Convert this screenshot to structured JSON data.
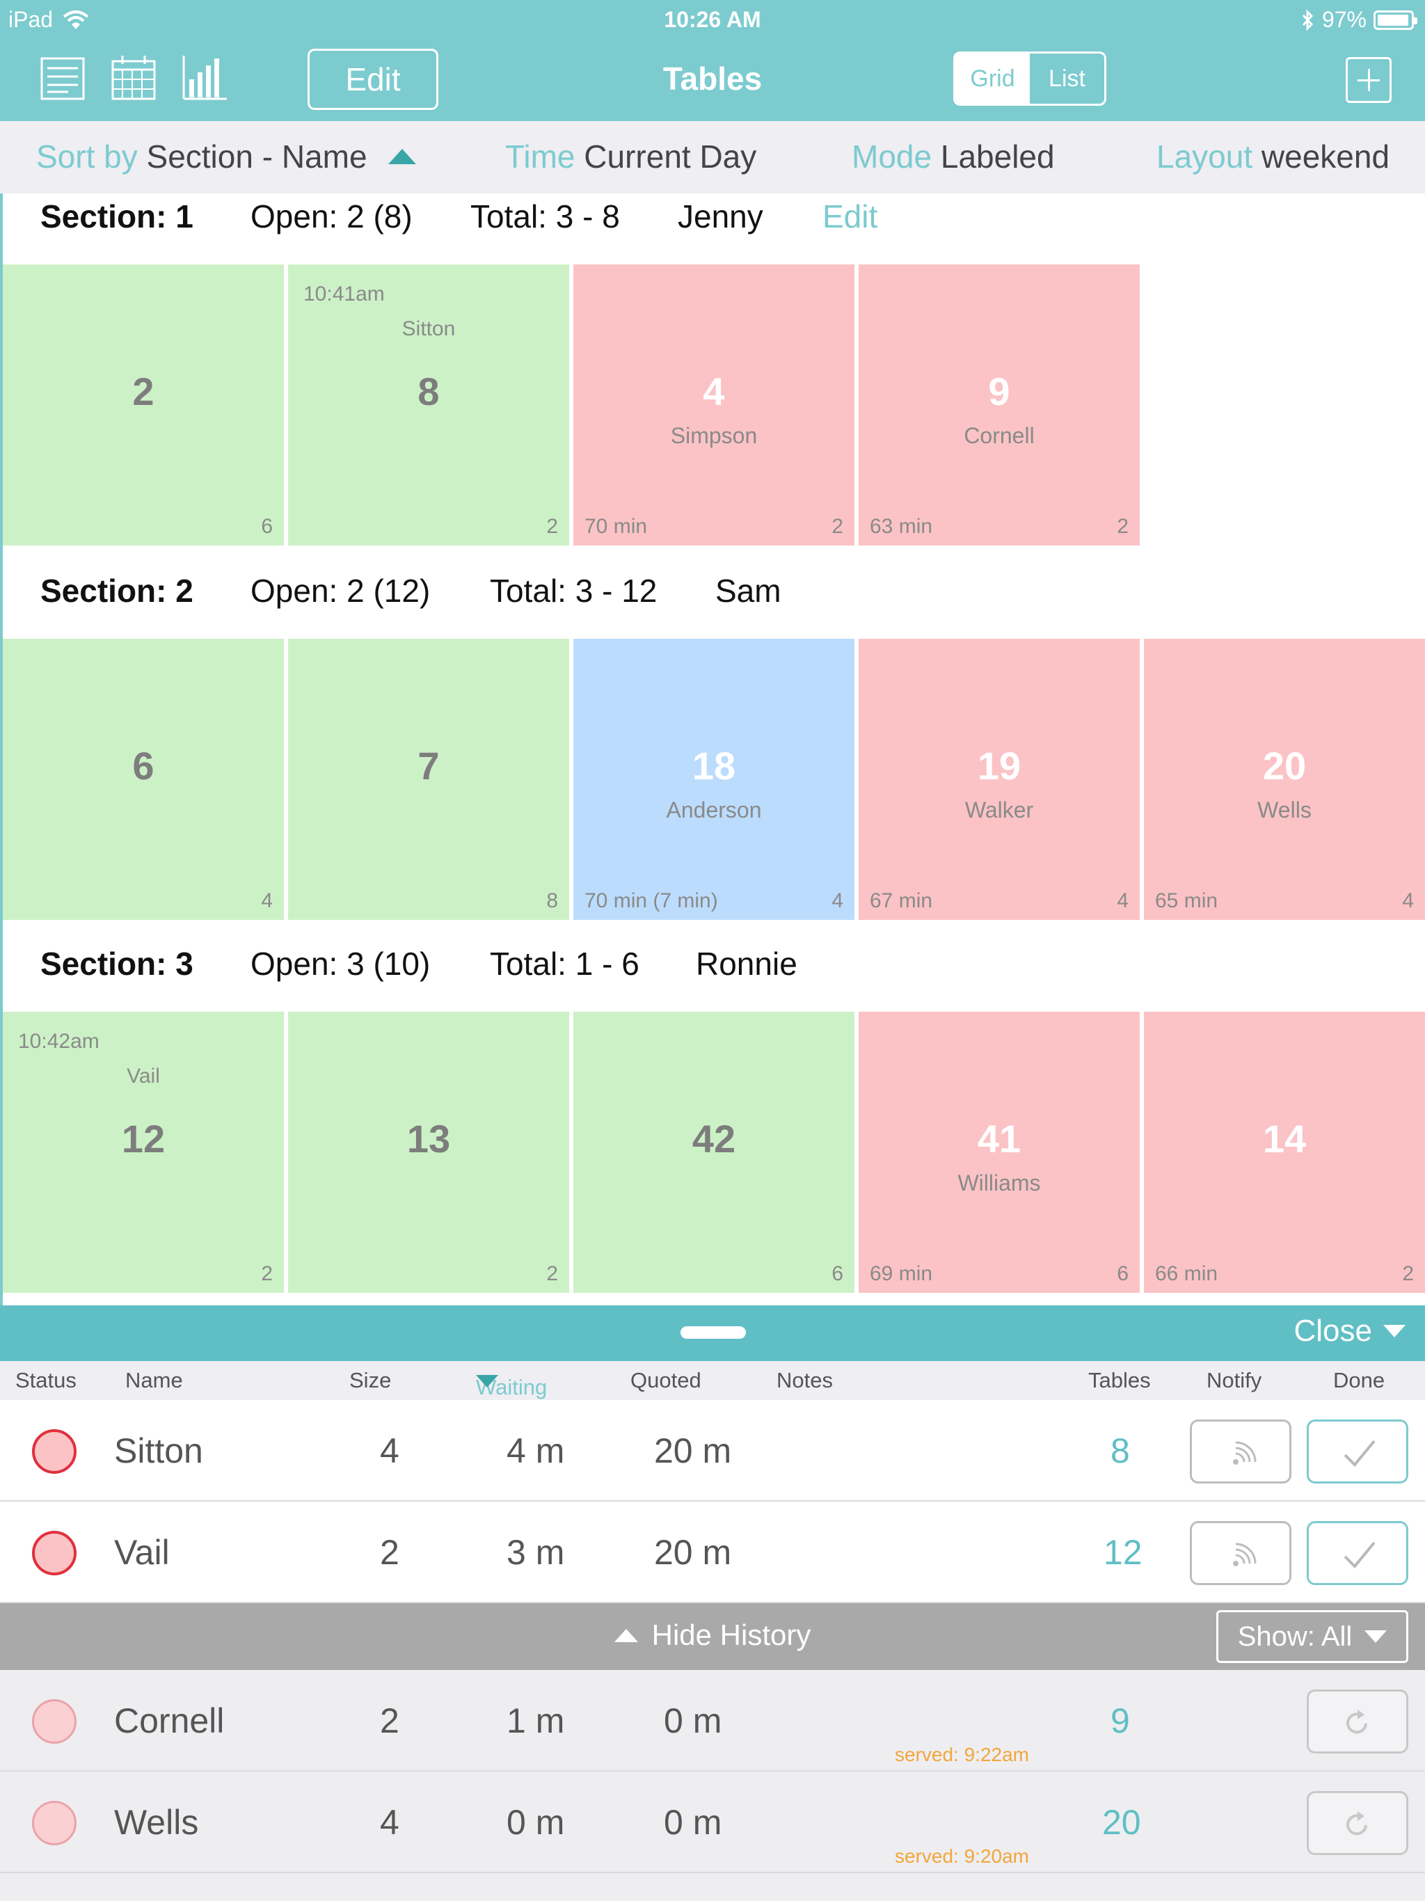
{
  "status_bar": {
    "carrier": "iPad",
    "time": "10:26 AM",
    "battery": "97%"
  },
  "nav": {
    "edit_label": "Edit",
    "title": "Tables",
    "segment": {
      "grid": "Grid",
      "list": "List",
      "selected": "grid"
    }
  },
  "filters": {
    "sort": {
      "key": "Sort by",
      "value": "Section - Name"
    },
    "time": {
      "key": "Time",
      "value": "Current Day"
    },
    "mode": {
      "key": "Mode",
      "value": "Labeled"
    },
    "layout": {
      "key": "Layout",
      "value": "weekend"
    }
  },
  "sections": [
    {
      "title": "Section: 1",
      "open": "Open: 2 (8)",
      "total": "Total: 3 - 8",
      "server": "Jenny",
      "edit": "Edit",
      "tables": [
        {
          "number": "2",
          "status": "green",
          "capacity": "6"
        },
        {
          "number": "8",
          "status": "green",
          "capacity": "2",
          "time": "10:41am",
          "reserved": "Sitton"
        },
        {
          "number": "4",
          "status": "red",
          "capacity": "2",
          "name": "Simpson",
          "duration": "70 min"
        },
        {
          "number": "9",
          "status": "red",
          "capacity": "2",
          "name": "Cornell",
          "duration": "63 min"
        }
      ]
    },
    {
      "title": "Section: 2",
      "open": "Open: 2 (12)",
      "total": "Total: 3 - 12",
      "server": "Sam",
      "tables": [
        {
          "number": "6",
          "status": "green",
          "capacity": "4"
        },
        {
          "number": "7",
          "status": "green",
          "capacity": "8"
        },
        {
          "number": "18",
          "status": "blue",
          "capacity": "4",
          "name": "Anderson",
          "duration": "70 min (7 min)"
        },
        {
          "number": "19",
          "status": "red",
          "capacity": "4",
          "name": "Walker",
          "duration": "67 min"
        },
        {
          "number": "20",
          "status": "red",
          "capacity": "4",
          "name": "Wells",
          "duration": "65 min"
        }
      ]
    },
    {
      "title": "Section: 3",
      "open": "Open: 3 (10)",
      "total": "Total: 1 - 6",
      "server": "Ronnie",
      "tables": [
        {
          "number": "12",
          "status": "green",
          "capacity": "2",
          "time": "10:42am",
          "reserved": "Vail"
        },
        {
          "number": "13",
          "status": "green",
          "capacity": "2"
        },
        {
          "number": "42",
          "status": "green",
          "capacity": "6"
        },
        {
          "number": "41",
          "status": "red",
          "capacity": "6",
          "name": "Williams",
          "duration": "69 min"
        },
        {
          "number": "14",
          "status": "red",
          "capacity": "2",
          "duration": "66 min"
        }
      ]
    }
  ],
  "waitlist": {
    "close_label": "Close",
    "columns": {
      "status": "Status",
      "name": "Name",
      "size": "Size",
      "waiting": "Waiting",
      "quoted": "Quoted",
      "notes": "Notes",
      "tables": "Tables",
      "notify": "Notify",
      "done": "Done"
    },
    "rows": [
      {
        "name": "Sitton",
        "size": "4",
        "waiting": "4 m",
        "quoted": "20 m",
        "table": "8"
      },
      {
        "name": "Vail",
        "size": "2",
        "waiting": "3 m",
        "quoted": "20 m",
        "table": "12"
      }
    ],
    "history_label": "Hide History",
    "show_label": "Show: All",
    "history": [
      {
        "name": "Cornell",
        "size": "2",
        "waiting": "1 m",
        "quoted": "0 m",
        "table": "9",
        "served": "served: 9:22am"
      },
      {
        "name": "Wells",
        "size": "4",
        "waiting": "0 m",
        "quoted": "0 m",
        "table": "20",
        "served": "served: 9:20am"
      }
    ]
  },
  "colors": {
    "accent": "#7ccbcf",
    "open": "#cdf1c7",
    "seated": "#fbc3c5",
    "check": "#bcdcfd",
    "served": "#f2a63c"
  }
}
